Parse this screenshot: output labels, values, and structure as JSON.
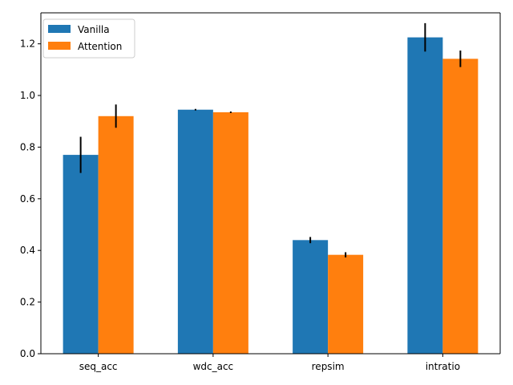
{
  "chart_data": {
    "type": "bar",
    "title": "",
    "xlabel": "",
    "ylabel": "",
    "categories": [
      "seq_acc",
      "wdc_acc",
      "repsim",
      "intratio"
    ],
    "series": [
      {
        "name": "Vanilla",
        "color": "#1f77b4",
        "values": [
          0.77,
          0.945,
          0.44,
          1.225
        ],
        "errors": [
          0.07,
          0.003,
          0.012,
          0.055
        ]
      },
      {
        "name": "Attention",
        "color": "#ff7f0e",
        "values": [
          0.92,
          0.935,
          0.383,
          1.142
        ],
        "errors": [
          0.045,
          0.003,
          0.01,
          0.032
        ]
      }
    ],
    "ylim": [
      0,
      1.32
    ],
    "yticks": [
      "0.0",
      "0.2",
      "0.4",
      "0.6",
      "0.8",
      "1.0",
      "1.2"
    ],
    "grid": false,
    "legend": {
      "position": "top-left",
      "entries": [
        "Vanilla",
        "Attention"
      ]
    }
  }
}
